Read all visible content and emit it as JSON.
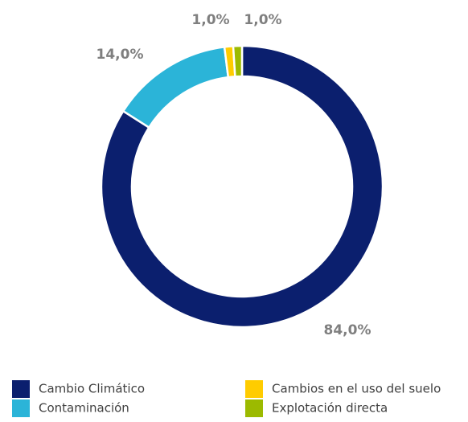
{
  "chart_data": {
    "type": "donut",
    "categories": [
      "Cambio Climático",
      "Contaminación",
      "Cambios en el uso del suelo",
      "Explotación directa"
    ],
    "values": [
      84,
      14,
      1,
      1
    ],
    "value_labels": [
      "84,0%",
      "14,0%",
      "1,0%",
      "1,0%"
    ],
    "colors": [
      "#0b1f6e",
      "#2bb4d8",
      "#ffcc00",
      "#9cba00"
    ]
  }
}
